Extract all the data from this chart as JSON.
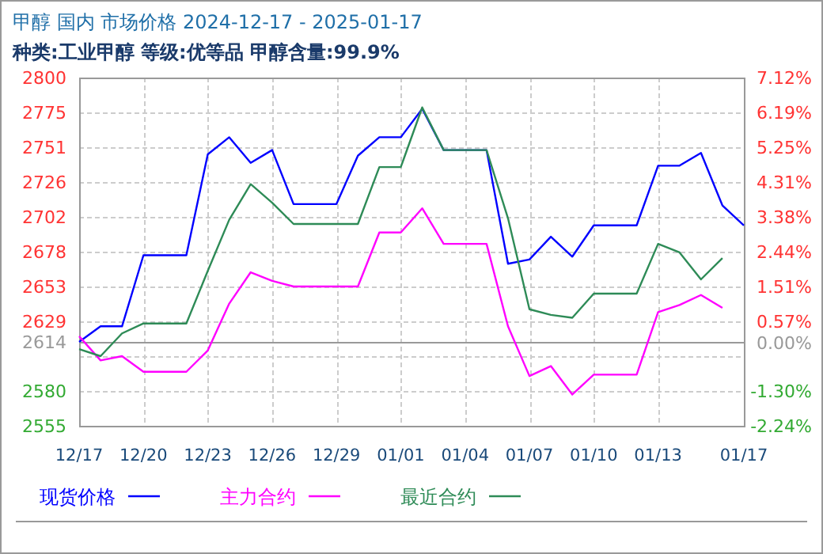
{
  "chart_data": {
    "type": "line",
    "title": "甲醇 国内 市场价格 2024-12-17 - 2025-01-17",
    "subtitle": "种类:工业甲醇 等级:优等品 甲醇含量:99.9%",
    "x": [
      "2024-12-17",
      "2024-12-18",
      "2024-12-19",
      "2024-12-20",
      "2024-12-21",
      "2024-12-22",
      "2024-12-23",
      "2024-12-24",
      "2024-12-25",
      "2024-12-26",
      "2024-12-27",
      "2024-12-28",
      "2024-12-29",
      "2024-12-30",
      "2024-12-31",
      "2025-01-01",
      "2025-01-02",
      "2025-01-03",
      "2025-01-04",
      "2025-01-05",
      "2025-01-06",
      "2025-01-07",
      "2025-01-08",
      "2025-01-09",
      "2025-01-10",
      "2025-01-11",
      "2025-01-12",
      "2025-01-13",
      "2025-01-14",
      "2025-01-15",
      "2025-01-16",
      "2025-01-17"
    ],
    "series": [
      {
        "name": "现货价格",
        "color": "#0000ff",
        "values": [
          2614,
          2625,
          2625,
          2675,
          2675,
          2675,
          2746,
          2758,
          2740,
          2749,
          2711,
          2711,
          2711,
          2745,
          2758,
          2758,
          2778,
          2749,
          2749,
          2749,
          2669,
          2672,
          2688,
          2674,
          2696,
          2696,
          2696,
          2738,
          2738,
          2747,
          2710,
          2696
        ]
      },
      {
        "name": "主力合约",
        "color": "#ff00ff",
        "values": [
          2618,
          2601,
          2604,
          2593,
          2593,
          2593,
          2608,
          2641,
          2663,
          2657,
          2653,
          2653,
          2653,
          2653,
          2691,
          2691,
          2708,
          2683,
          2683,
          2683,
          2625,
          2590,
          2597,
          2577,
          2591,
          2591,
          2591,
          2635,
          2640,
          2647,
          2638,
          null
        ]
      },
      {
        "name": "最近合约",
        "color": "#2e8b57",
        "values": [
          2609,
          2604,
          2620,
          2627,
          2627,
          2627,
          2664,
          2700,
          2725,
          2712,
          2697,
          2697,
          2697,
          2697,
          2737,
          2737,
          2779,
          2749,
          2749,
          2749,
          2701,
          2637,
          2633,
          2631,
          2648,
          2648,
          2648,
          2683,
          2677,
          2658,
          2673,
          null
        ]
      }
    ],
    "xlim": [
      "2024-12-17",
      "2025-01-17"
    ],
    "xticks": [
      {
        "value": "2024-12-17",
        "label": "12/17"
      },
      {
        "value": "2024-12-20",
        "label": "12/20"
      },
      {
        "value": "2024-12-23",
        "label": "12/23"
      },
      {
        "value": "2024-12-26",
        "label": "12/26"
      },
      {
        "value": "2024-12-29",
        "label": "12/29"
      },
      {
        "value": "2025-01-01",
        "label": "01/01"
      },
      {
        "value": "2025-01-04",
        "label": "01/04"
      },
      {
        "value": "2025-01-07",
        "label": "01/07"
      },
      {
        "value": "2025-01-10",
        "label": "01/10"
      },
      {
        "value": "2025-01-13",
        "label": "01/13"
      },
      {
        "value": "2025-01-17",
        "label": "01/17"
      }
    ],
    "ylim": [
      2555,
      2800
    ],
    "yticks": [
      {
        "value": 2800,
        "label": "2800"
      },
      {
        "value": 2775.5,
        "label": "2775"
      },
      {
        "value": 2751,
        "label": "2751"
      },
      {
        "value": 2726.5,
        "label": "2726"
      },
      {
        "value": 2702,
        "label": "2702"
      },
      {
        "value": 2677.5,
        "label": "2678"
      },
      {
        "value": 2653,
        "label": "2653"
      },
      {
        "value": 2628.5,
        "label": "2629"
      },
      {
        "value": 2614,
        "label": "2614"
      },
      {
        "value": 2604,
        "label": null
      },
      {
        "value": 2579.5,
        "label": "2580"
      },
      {
        "value": 2555,
        "label": "2555"
      }
    ],
    "y2lim": [
      -2.24,
      7.12
    ],
    "y2ticks": [
      {
        "value": 7.12,
        "label": "7.12%"
      },
      {
        "value": 6.19,
        "label": "6.19%"
      },
      {
        "value": 5.25,
        "label": "5.25%"
      },
      {
        "value": 4.31,
        "label": "4.31%"
      },
      {
        "value": 3.38,
        "label": "3.38%"
      },
      {
        "value": 2.44,
        "label": "2.44%"
      },
      {
        "value": 1.51,
        "label": "1.51%"
      },
      {
        "value": 0.57,
        "label": "0.57%"
      },
      {
        "value": 0,
        "label": "0.00%"
      },
      {
        "value": -1.3,
        "label": "-1.30%"
      },
      {
        "value": -2.24,
        "label": "-2.24%"
      }
    ],
    "ref_lines": [
      {
        "axis": "y",
        "value": 2614,
        "color": "#999999"
      }
    ],
    "grid": true,
    "legend": "bottom",
    "marker": "none",
    "line_style": "solid"
  }
}
